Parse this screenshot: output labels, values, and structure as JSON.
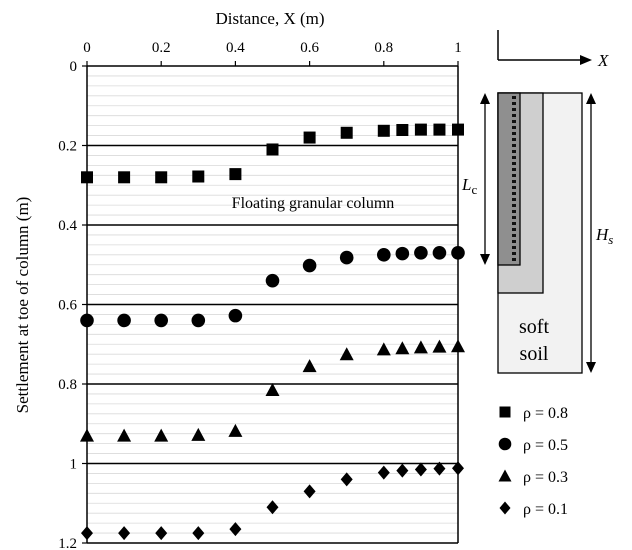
{
  "chart_data": {
    "type": "scatter",
    "xlabel": "Distance, X (m)",
    "ylabel": "Settlement at toe of column (m)",
    "xlim": [
      0,
      1
    ],
    "ylim": [
      0,
      1.2
    ],
    "y_inverted": true,
    "x_axis_position": "top",
    "x_ticks": [
      "0",
      "0.2",
      "0.4",
      "0.6",
      "0.8",
      "1"
    ],
    "y_ticks": [
      "0",
      "0.2",
      "0.4",
      "0.6",
      "0.8",
      "1",
      "1.2"
    ],
    "grid": "major horizontal dark, minor horizontal light",
    "annotation": "Floating granular column",
    "legend_placement": "bottom-right",
    "series": [
      {
        "name": "ρ = 0.8",
        "marker": "square",
        "x": [
          0,
          0.1,
          0.2,
          0.3,
          0.4,
          0.5,
          0.6,
          0.7,
          0.8,
          0.85,
          0.9,
          0.95,
          1.0
        ],
        "y": [
          0.28,
          0.28,
          0.28,
          0.278,
          0.272,
          0.21,
          0.18,
          0.168,
          0.163,
          0.161,
          0.16,
          0.16,
          0.16
        ]
      },
      {
        "name": "ρ = 0.5",
        "marker": "circle",
        "x": [
          0,
          0.1,
          0.2,
          0.3,
          0.4,
          0.5,
          0.6,
          0.7,
          0.8,
          0.85,
          0.9,
          0.95,
          1.0
        ],
        "y": [
          0.64,
          0.64,
          0.64,
          0.64,
          0.628,
          0.54,
          0.502,
          0.482,
          0.475,
          0.472,
          0.47,
          0.47,
          0.47
        ]
      },
      {
        "name": "ρ = 0.3",
        "marker": "triangle",
        "x": [
          0,
          0.1,
          0.2,
          0.3,
          0.4,
          0.5,
          0.6,
          0.7,
          0.8,
          0.85,
          0.9,
          0.95,
          1.0
        ],
        "y": [
          0.93,
          0.93,
          0.93,
          0.928,
          0.918,
          0.815,
          0.755,
          0.725,
          0.713,
          0.71,
          0.708,
          0.706,
          0.705
        ]
      },
      {
        "name": "ρ = 0.1",
        "marker": "diamond",
        "x": [
          0,
          0.1,
          0.2,
          0.3,
          0.4,
          0.5,
          0.6,
          0.7,
          0.8,
          0.85,
          0.9,
          0.95,
          1.0
        ],
        "y": [
          1.175,
          1.175,
          1.175,
          1.175,
          1.165,
          1.11,
          1.07,
          1.04,
          1.023,
          1.018,
          1.015,
          1.013,
          1.012
        ]
      }
    ]
  },
  "schematic": {
    "axis_label": "X",
    "column_length_label": "L",
    "column_length_subscript": "c",
    "soil_depth_label": "H",
    "soil_depth_subscript": "s",
    "soil_label_line1": "soft",
    "soil_label_line2": "soil"
  }
}
